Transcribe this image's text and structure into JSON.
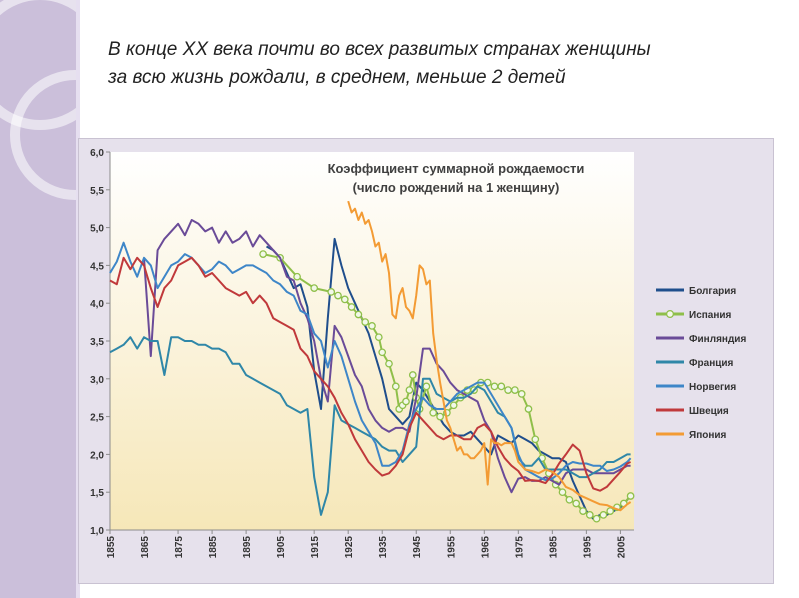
{
  "slide": {
    "title_line1": "В конце XX века почти во всех развитых странах женщины",
    "title_line2": "за всю жизнь рождали, в среднем, меньше 2 детей"
  },
  "colors": {
    "side_band": "#cbbfda",
    "plot_top": "#ffffff",
    "plot_bottom": "#f6e7b8"
  },
  "chart_data": {
    "type": "line",
    "title_lines": [
      "Коэффициент суммарной рождаемости",
      "(число рождений на 1 женщину)"
    ],
    "xlabel": "",
    "ylabel": "",
    "xlim": [
      1855,
      2009
    ],
    "ylim": [
      1.0,
      6.0
    ],
    "y_ticks": [
      "1,0",
      "1,5",
      "2,0",
      "2,5",
      "3,0",
      "3,5",
      "4,0",
      "4,5",
      "5,0",
      "5,5",
      "6,0"
    ],
    "x_ticks": [
      "1855",
      "1865",
      "1875",
      "1885",
      "1895",
      "1905",
      "1915",
      "1925",
      "1935",
      "1945",
      "1955",
      "1965",
      "1975",
      "1985",
      "1995",
      "2005"
    ],
    "grid": false,
    "legend_position": "right",
    "series": [
      {
        "name": "Болгария",
        "color": "#1f4e8c",
        "marker": "none",
        "x": [
          1901,
          1903,
          1905,
          1907,
          1909,
          1911,
          1913,
          1915,
          1917,
          1919,
          1921,
          1923,
          1925,
          1927,
          1929,
          1931,
          1933,
          1935,
          1937,
          1939,
          1941,
          1943,
          1945,
          1947,
          1949,
          1951,
          1953,
          1955,
          1957,
          1959,
          1961,
          1963,
          1965,
          1967,
          1969,
          1971,
          1973,
          1975,
          1977,
          1979,
          1981,
          1983,
          1985,
          1987,
          1989,
          1991,
          1993,
          1995,
          1997,
          1999,
          2001,
          2003,
          2005,
          2007,
          2008
        ],
        "y": [
          4.75,
          4.7,
          4.6,
          4.4,
          4.2,
          4.25,
          3.95,
          3.1,
          2.6,
          3.8,
          4.85,
          4.5,
          4.2,
          4.0,
          3.8,
          3.6,
          3.3,
          3.0,
          2.6,
          2.5,
          2.4,
          2.5,
          2.95,
          2.85,
          2.7,
          2.55,
          2.4,
          2.3,
          2.25,
          2.25,
          2.3,
          2.2,
          2.1,
          2.0,
          2.25,
          2.2,
          2.15,
          2.25,
          2.2,
          2.15,
          2.05,
          2.0,
          1.95,
          1.95,
          1.9,
          1.65,
          1.45,
          1.25,
          1.15,
          1.2,
          1.2,
          1.25,
          1.3,
          1.4,
          1.45
        ]
      },
      {
        "name": "Испания",
        "color": "#8fbf4a",
        "marker": "circle",
        "x": [
          1900,
          1905,
          1910,
          1915,
          1920,
          1922,
          1924,
          1926,
          1928,
          1930,
          1932,
          1934,
          1935,
          1937,
          1939,
          1940,
          1941,
          1942,
          1943,
          1944,
          1945,
          1946,
          1948,
          1950,
          1952,
          1954,
          1956,
          1958,
          1960,
          1962,
          1964,
          1966,
          1968,
          1970,
          1972,
          1974,
          1976,
          1978,
          1980,
          1982,
          1984,
          1986,
          1988,
          1990,
          1992,
          1994,
          1996,
          1998,
          2000,
          2002,
          2004,
          2006,
          2008
        ],
        "y": [
          4.65,
          4.6,
          4.35,
          4.2,
          4.15,
          4.1,
          4.05,
          3.95,
          3.85,
          3.75,
          3.7,
          3.55,
          3.35,
          3.2,
          2.9,
          2.6,
          2.65,
          2.7,
          2.85,
          3.05,
          2.75,
          2.6,
          2.9,
          2.55,
          2.5,
          2.55,
          2.65,
          2.75,
          2.85,
          2.85,
          2.95,
          2.95,
          2.9,
          2.9,
          2.85,
          2.85,
          2.8,
          2.6,
          2.2,
          1.95,
          1.75,
          1.6,
          1.5,
          1.4,
          1.35,
          1.25,
          1.2,
          1.15,
          1.2,
          1.25,
          1.3,
          1.35,
          1.45
        ]
      },
      {
        "name": "Финляндия",
        "color": "#6a4b98",
        "marker": "none",
        "x": [
          1865,
          1867,
          1869,
          1871,
          1873,
          1875,
          1877,
          1879,
          1881,
          1883,
          1885,
          1887,
          1889,
          1891,
          1893,
          1895,
          1897,
          1899,
          1901,
          1903,
          1905,
          1907,
          1909,
          1911,
          1913,
          1915,
          1917,
          1919,
          1921,
          1923,
          1925,
          1927,
          1929,
          1931,
          1933,
          1935,
          1937,
          1939,
          1941,
          1943,
          1945,
          1947,
          1949,
          1951,
          1953,
          1955,
          1957,
          1959,
          1961,
          1963,
          1965,
          1967,
          1969,
          1971,
          1973,
          1975,
          1977,
          1979,
          1981,
          1983,
          1985,
          1987,
          1989,
          1991,
          1993,
          1995,
          1997,
          1999,
          2001,
          2003,
          2005,
          2007,
          2008
        ],
        "y": [
          4.6,
          3.3,
          4.7,
          4.85,
          4.95,
          5.05,
          4.9,
          5.1,
          5.05,
          4.95,
          5.0,
          4.8,
          4.95,
          4.8,
          4.85,
          4.95,
          4.75,
          4.9,
          4.8,
          4.7,
          4.6,
          4.35,
          4.3,
          4.0,
          3.8,
          3.5,
          3.0,
          2.7,
          3.7,
          3.55,
          3.3,
          3.05,
          2.9,
          2.6,
          2.45,
          2.35,
          2.3,
          2.35,
          2.35,
          2.3,
          2.75,
          3.4,
          3.4,
          3.2,
          3.1,
          2.95,
          2.85,
          2.8,
          2.75,
          2.7,
          2.45,
          2.3,
          1.95,
          1.7,
          1.5,
          1.68,
          1.7,
          1.65,
          1.65,
          1.7,
          1.65,
          1.6,
          1.75,
          1.8,
          1.8,
          1.8,
          1.75,
          1.75,
          1.75,
          1.75,
          1.8,
          1.85,
          1.85
        ]
      },
      {
        "name": "Франция",
        "color": "#2f87a8",
        "marker": "none",
        "x": [
          1855,
          1857,
          1859,
          1861,
          1863,
          1865,
          1867,
          1869,
          1871,
          1873,
          1875,
          1877,
          1879,
          1881,
          1883,
          1885,
          1887,
          1889,
          1891,
          1893,
          1895,
          1897,
          1899,
          1901,
          1903,
          1905,
          1907,
          1909,
          1911,
          1913,
          1915,
          1917,
          1919,
          1921,
          1923,
          1925,
          1927,
          1929,
          1931,
          1933,
          1935,
          1937,
          1939,
          1941,
          1943,
          1945,
          1947,
          1949,
          1951,
          1953,
          1955,
          1957,
          1959,
          1961,
          1963,
          1965,
          1967,
          1969,
          1971,
          1973,
          1975,
          1977,
          1979,
          1981,
          1983,
          1985,
          1987,
          1989,
          1991,
          1993,
          1995,
          1997,
          1999,
          2001,
          2003,
          2005,
          2007,
          2008
        ],
        "y": [
          3.35,
          3.4,
          3.45,
          3.55,
          3.4,
          3.55,
          3.5,
          3.5,
          3.05,
          3.55,
          3.55,
          3.5,
          3.5,
          3.45,
          3.45,
          3.4,
          3.4,
          3.35,
          3.2,
          3.2,
          3.05,
          3.0,
          2.95,
          2.9,
          2.85,
          2.8,
          2.65,
          2.6,
          2.55,
          2.6,
          1.7,
          1.2,
          1.5,
          2.65,
          2.45,
          2.4,
          2.35,
          2.3,
          2.25,
          2.2,
          2.1,
          2.05,
          2.05,
          1.9,
          2.0,
          2.1,
          3.0,
          3.0,
          2.8,
          2.75,
          2.7,
          2.75,
          2.75,
          2.8,
          2.9,
          2.85,
          2.7,
          2.55,
          2.5,
          2.35,
          1.95,
          1.85,
          1.85,
          1.95,
          1.8,
          1.8,
          1.8,
          1.8,
          1.75,
          1.7,
          1.7,
          1.75,
          1.8,
          1.9,
          1.9,
          1.95,
          2.0,
          2.0
        ]
      },
      {
        "name": "Норвегия",
        "color": "#3e86c8",
        "marker": "none",
        "x": [
          1855,
          1857,
          1859,
          1861,
          1863,
          1865,
          1867,
          1869,
          1871,
          1873,
          1875,
          1877,
          1879,
          1881,
          1883,
          1885,
          1887,
          1889,
          1891,
          1893,
          1895,
          1897,
          1899,
          1901,
          1903,
          1905,
          1907,
          1909,
          1911,
          1913,
          1915,
          1917,
          1919,
          1921,
          1923,
          1925,
          1927,
          1929,
          1931,
          1933,
          1935,
          1937,
          1939,
          1941,
          1943,
          1945,
          1947,
          1949,
          1951,
          1953,
          1955,
          1957,
          1959,
          1961,
          1963,
          1965,
          1967,
          1969,
          1971,
          1973,
          1975,
          1977,
          1979,
          1981,
          1983,
          1985,
          1987,
          1989,
          1991,
          1993,
          1995,
          1997,
          1999,
          2001,
          2003,
          2005,
          2007,
          2008
        ],
        "y": [
          4.4,
          4.55,
          4.8,
          4.55,
          4.35,
          4.6,
          4.5,
          4.2,
          4.35,
          4.5,
          4.55,
          4.65,
          4.6,
          4.5,
          4.4,
          4.45,
          4.55,
          4.5,
          4.4,
          4.45,
          4.5,
          4.5,
          4.45,
          4.4,
          4.3,
          4.25,
          4.15,
          4.1,
          3.9,
          3.85,
          3.6,
          3.5,
          3.15,
          3.5,
          3.3,
          3.0,
          2.7,
          2.45,
          2.3,
          2.15,
          1.85,
          1.85,
          1.9,
          2.05,
          2.4,
          2.6,
          2.75,
          2.65,
          2.6,
          2.6,
          2.7,
          2.8,
          2.85,
          2.9,
          2.95,
          2.95,
          2.8,
          2.65,
          2.5,
          2.35,
          2.0,
          1.8,
          1.75,
          1.7,
          1.66,
          1.68,
          1.75,
          1.85,
          1.9,
          1.88,
          1.88,
          1.85,
          1.85,
          1.78,
          1.8,
          1.84,
          1.9,
          1.95
        ]
      },
      {
        "name": "Швеция",
        "color": "#c0393b",
        "marker": "none",
        "x": [
          1855,
          1857,
          1859,
          1861,
          1863,
          1865,
          1867,
          1869,
          1871,
          1873,
          1875,
          1877,
          1879,
          1881,
          1883,
          1885,
          1887,
          1889,
          1891,
          1893,
          1895,
          1897,
          1899,
          1901,
          1903,
          1905,
          1907,
          1909,
          1911,
          1913,
          1915,
          1917,
          1919,
          1921,
          1923,
          1925,
          1927,
          1929,
          1931,
          1933,
          1935,
          1937,
          1939,
          1941,
          1943,
          1945,
          1947,
          1949,
          1951,
          1953,
          1955,
          1957,
          1959,
          1961,
          1963,
          1965,
          1967,
          1969,
          1971,
          1973,
          1975,
          1977,
          1979,
          1981,
          1983,
          1985,
          1987,
          1989,
          1991,
          1993,
          1995,
          1997,
          1999,
          2001,
          2003,
          2005,
          2007,
          2008
        ],
        "y": [
          4.3,
          4.25,
          4.6,
          4.45,
          4.6,
          4.5,
          4.2,
          3.95,
          4.2,
          4.3,
          4.5,
          4.55,
          4.6,
          4.5,
          4.35,
          4.4,
          4.3,
          4.2,
          4.15,
          4.1,
          4.15,
          4.0,
          4.1,
          4.0,
          3.8,
          3.75,
          3.7,
          3.65,
          3.4,
          3.3,
          3.1,
          3.0,
          2.9,
          2.75,
          2.55,
          2.4,
          2.2,
          2.05,
          1.9,
          1.8,
          1.72,
          1.75,
          1.85,
          2.0,
          2.35,
          2.55,
          2.45,
          2.35,
          2.25,
          2.2,
          2.25,
          2.25,
          2.2,
          2.2,
          2.35,
          2.4,
          2.3,
          2.1,
          1.95,
          1.85,
          1.78,
          1.65,
          1.66,
          1.65,
          1.62,
          1.73,
          1.88,
          2.0,
          2.13,
          2.05,
          1.75,
          1.55,
          1.52,
          1.57,
          1.67,
          1.77,
          1.88,
          1.9
        ]
      },
      {
        "name": "Япония",
        "color": "#f39b34",
        "marker": "none",
        "x": [
          1925,
          1926,
          1927,
          1928,
          1929,
          1930,
          1931,
          1932,
          1933,
          1934,
          1935,
          1936,
          1937,
          1938,
          1939,
          1940,
          1941,
          1942,
          1943,
          1944,
          1945,
          1946,
          1947,
          1948,
          1949,
          1950,
          1951,
          1952,
          1953,
          1954,
          1955,
          1956,
          1957,
          1958,
          1959,
          1960,
          1961,
          1962,
          1963,
          1964,
          1965,
          1966,
          1967,
          1968,
          1969,
          1970,
          1971,
          1972,
          1973,
          1974,
          1975,
          1977,
          1979,
          1981,
          1983,
          1985,
          1987,
          1989,
          1991,
          1993,
          1995,
          1997,
          1999,
          2001,
          2003,
          2005,
          2007,
          2008
        ],
        "y": [
          5.35,
          5.2,
          5.25,
          5.1,
          5.2,
          5.05,
          5.1,
          4.95,
          4.75,
          4.8,
          4.55,
          4.65,
          4.4,
          3.85,
          3.8,
          4.1,
          4.2,
          3.95,
          3.9,
          3.8,
          4.1,
          4.5,
          4.45,
          4.25,
          4.3,
          3.6,
          3.25,
          2.95,
          2.7,
          2.45,
          2.35,
          2.2,
          2.05,
          2.1,
          2.0,
          2.0,
          1.95,
          1.95,
          2.0,
          2.05,
          2.15,
          1.6,
          2.2,
          2.15,
          2.15,
          2.12,
          2.15,
          2.15,
          2.15,
          2.05,
          1.9,
          1.8,
          1.78,
          1.75,
          1.8,
          1.77,
          1.7,
          1.57,
          1.53,
          1.46,
          1.42,
          1.38,
          1.34,
          1.33,
          1.29,
          1.26,
          1.34,
          1.37
        ]
      }
    ]
  }
}
